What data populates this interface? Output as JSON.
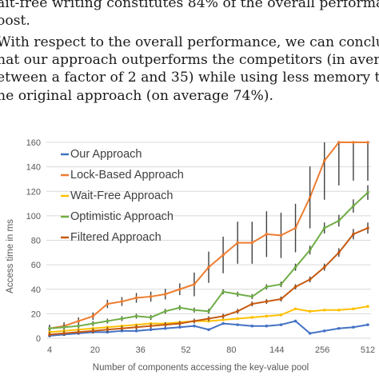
{
  "paragraph": {
    "lines": [
      "ait-free writing constitutes 84% of the overall performanc",
      "oost.",
      "   With respect to the overall performance, we can conclu",
      "hat our approach outperforms the competitors (in averag",
      "etween a factor of 2 and 35) while using less memory tha",
      "he original approach (on average 74%)."
    ]
  },
  "chart_data": {
    "type": "line",
    "xlabel": "Number of components accessing the key-value pool",
    "ylabel": "Access time in ms",
    "ylim": [
      0,
      160
    ],
    "yticks": [
      0,
      20,
      40,
      60,
      80,
      100,
      120,
      140,
      160
    ],
    "xtick_labels": [
      "4",
      "20",
      "36",
      "52",
      "80",
      "144",
      "256",
      "512"
    ],
    "grid": "horizontal",
    "legend_position": "top-left",
    "x": [
      4,
      12,
      20,
      28,
      36,
      44,
      52,
      60,
      68,
      76,
      80,
      96,
      112,
      128,
      144,
      176,
      208,
      240,
      256,
      320,
      384,
      448,
      512
    ],
    "series": [
      {
        "name": "Our Approach",
        "color": "#4472C4",
        "values": [
          2,
          3,
          4,
          5,
          5,
          6,
          6,
          7,
          8,
          9,
          10,
          7,
          12,
          11,
          10,
          10,
          11,
          14,
          4,
          6,
          8,
          9,
          11
        ]
      },
      {
        "name": "Lock-Based Approach",
        "color": "#ED7D31",
        "values": [
          8,
          10,
          14,
          18,
          28,
          30,
          33,
          34,
          36,
          40,
          44,
          58,
          68,
          78,
          78,
          85,
          84,
          90,
          115,
          145,
          160,
          165,
          165
        ]
      },
      {
        "name": "Wait-Free Approach",
        "color": "#FFC000",
        "values": [
          5,
          6,
          7,
          8,
          9,
          10,
          11,
          12,
          12,
          13,
          14,
          14,
          15,
          16,
          17,
          18,
          19,
          24,
          22,
          23,
          23,
          24,
          26
        ]
      },
      {
        "name": "Optimistic Approach",
        "color": "#70AD47",
        "values": [
          8,
          9,
          10,
          12,
          14,
          16,
          18,
          17,
          22,
          25,
          23,
          22,
          38,
          36,
          34,
          42,
          44,
          58,
          72,
          90,
          96,
          108,
          119
        ]
      },
      {
        "name": "Filtered Approach",
        "color": "#C55A11",
        "values": [
          3,
          4,
          5,
          6,
          7,
          8,
          9,
          10,
          11,
          12,
          14,
          16,
          18,
          22,
          28,
          30,
          32,
          42,
          48,
          58,
          70,
          85,
          90
        ]
      }
    ]
  }
}
